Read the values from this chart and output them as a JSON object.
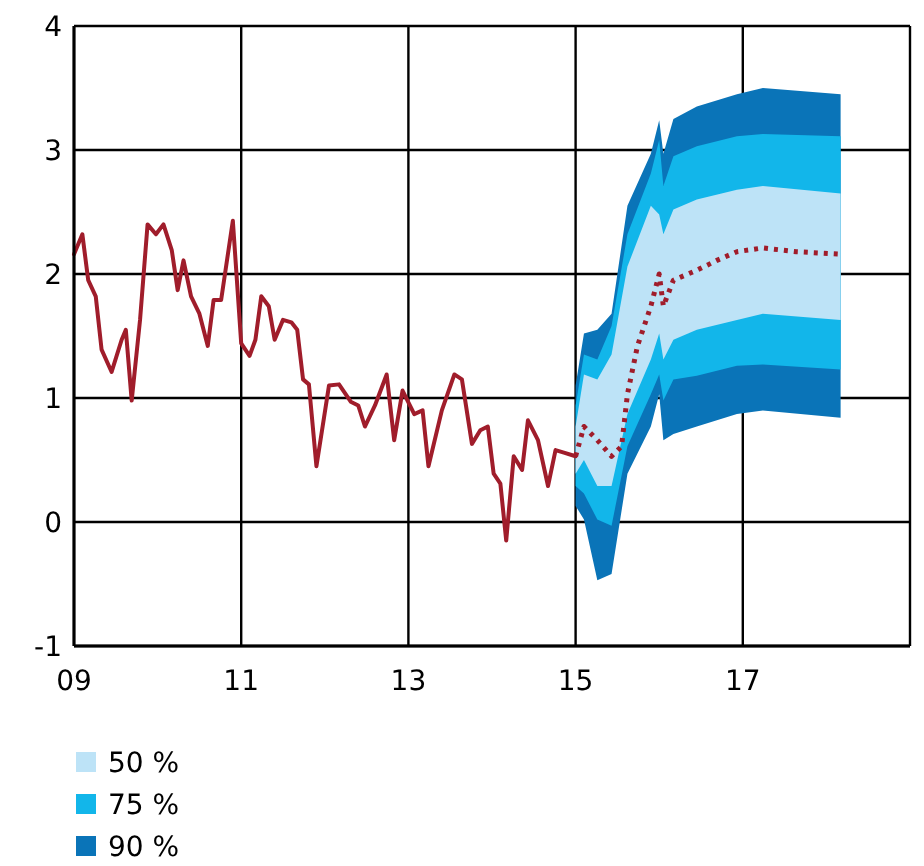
{
  "chart_data": {
    "type": "line",
    "xlim": [
      2009,
      2019
    ],
    "ylim": [
      -1,
      4
    ],
    "xticks": [
      {
        "value": 2009,
        "label": "09"
      },
      {
        "value": 2011,
        "label": "11"
      },
      {
        "value": 2013,
        "label": "13"
      },
      {
        "value": 2015,
        "label": "15"
      },
      {
        "value": 2017,
        "label": "17"
      }
    ],
    "yticks": [
      -1,
      0,
      1,
      2,
      3,
      4
    ],
    "grid": true,
    "legend": "bottom left",
    "series": [
      {
        "name": "90 %",
        "type": "area",
        "color": "#0a74b8",
        "x": [
          2015.0,
          2015.1,
          2015.26,
          2015.43,
          2015.62,
          2015.9,
          2016.0,
          2016.05,
          2016.17,
          2016.45,
          2016.93,
          2017.24,
          2018.17
        ],
        "values": [
          null,
          null,
          null,
          null,
          null,
          null,
          null,
          null,
          null,
          null,
          null,
          null,
          null
        ],
        "lower": [
          0.13,
          0.02,
          -0.47,
          -0.42,
          0.39,
          0.77,
          1.03,
          0.66,
          0.71,
          0.77,
          0.87,
          0.9,
          0.84
        ],
        "upper": [
          1.1,
          1.52,
          1.55,
          1.68,
          2.55,
          2.97,
          3.24,
          2.97,
          3.25,
          3.35,
          3.45,
          3.5,
          3.45
        ]
      },
      {
        "name": "75 %",
        "type": "area",
        "color": "#12b6ea",
        "x": [
          2015.0,
          2015.1,
          2015.26,
          2015.43,
          2015.62,
          2015.9,
          2016.0,
          2016.05,
          2016.17,
          2016.45,
          2016.93,
          2017.24,
          2018.17
        ],
        "values": [
          null,
          null,
          null,
          null,
          null,
          null,
          null,
          null,
          null,
          null,
          null,
          null,
          null
        ],
        "lower": [
          0.29,
          0.23,
          0.02,
          -0.03,
          0.61,
          1.03,
          1.19,
          0.98,
          1.15,
          1.18,
          1.26,
          1.27,
          1.23
        ],
        "upper": [
          0.94,
          1.35,
          1.31,
          1.58,
          2.32,
          2.81,
          3.08,
          2.71,
          2.95,
          3.03,
          3.11,
          3.13,
          3.11
        ]
      },
      {
        "name": "50 %",
        "type": "area",
        "color": "#bde3f7",
        "x": [
          2015.0,
          2015.1,
          2015.26,
          2015.43,
          2015.62,
          2015.9,
          2016.0,
          2016.05,
          2016.17,
          2016.45,
          2016.93,
          2017.24,
          2018.17
        ],
        "values": [
          null,
          null,
          null,
          null,
          null,
          null,
          null,
          null,
          null,
          null,
          null,
          null,
          null
        ],
        "lower": [
          0.39,
          0.5,
          0.29,
          0.29,
          0.87,
          1.31,
          1.52,
          1.31,
          1.47,
          1.55,
          1.63,
          1.68,
          1.63
        ],
        "upper": [
          0.77,
          1.19,
          1.15,
          1.35,
          2.06,
          2.55,
          2.48,
          2.32,
          2.52,
          2.6,
          2.68,
          2.71,
          2.65
        ]
      },
      {
        "type": "line",
        "color": "#a01d2b",
        "line_style": "solid",
        "x": [
          2009.0,
          2009.1,
          2009.17,
          2009.26,
          2009.33,
          2009.45,
          2009.57,
          2009.62,
          2009.69,
          2009.79,
          2009.88,
          2009.98,
          2010.07,
          2010.17,
          2010.24,
          2010.31,
          2010.4,
          2010.5,
          2010.6,
          2010.67,
          2010.76,
          2010.9,
          2011.0,
          2011.1,
          2011.17,
          2011.24,
          2011.33,
          2011.4,
          2011.5,
          2011.6,
          2011.67,
          2011.74,
          2011.81,
          2011.9,
          2012.05,
          2012.17,
          2012.31,
          2012.4,
          2012.48,
          2012.6,
          2012.74,
          2012.83,
          2012.93,
          2013.07,
          2013.17,
          2013.24,
          2013.4,
          2013.55,
          2013.64,
          2013.76,
          2013.86,
          2013.95,
          2014.02,
          2014.1,
          2014.17,
          2014.26,
          2014.36,
          2014.43,
          2014.55,
          2014.67,
          2014.76,
          2014.86,
          2015.0
        ],
        "values": [
          2.16,
          2.32,
          1.95,
          1.82,
          1.39,
          1.21,
          1.47,
          1.55,
          0.98,
          1.63,
          2.4,
          2.32,
          2.4,
          2.19,
          1.87,
          2.11,
          1.82,
          1.68,
          1.42,
          1.79,
          1.79,
          2.43,
          1.44,
          1.34,
          1.47,
          1.82,
          1.74,
          1.47,
          1.63,
          1.61,
          1.55,
          1.15,
          1.11,
          0.45,
          1.1,
          1.11,
          0.97,
          0.94,
          0.77,
          0.94,
          1.19,
          0.66,
          1.06,
          0.87,
          0.9,
          0.45,
          0.9,
          1.19,
          1.15,
          0.63,
          0.74,
          0.77,
          0.39,
          0.31,
          -0.15,
          0.53,
          0.42,
          0.82,
          0.66,
          0.29,
          0.58,
          0.56,
          0.53
        ]
      },
      {
        "type": "line",
        "color": "#a01d2b",
        "line_style": "dotted",
        "x": [
          2015.0,
          2015.1,
          2015.26,
          2015.43,
          2015.55,
          2015.62,
          2015.74,
          2015.9,
          2016.0,
          2016.05,
          2016.17,
          2016.45,
          2016.69,
          2016.93,
          2017.24,
          2017.64,
          2018.17
        ],
        "values": [
          0.53,
          0.77,
          0.66,
          0.53,
          0.61,
          1.03,
          1.42,
          1.74,
          2.0,
          1.74,
          1.95,
          2.03,
          2.11,
          2.18,
          2.21,
          2.18,
          2.16
        ]
      }
    ]
  }
}
